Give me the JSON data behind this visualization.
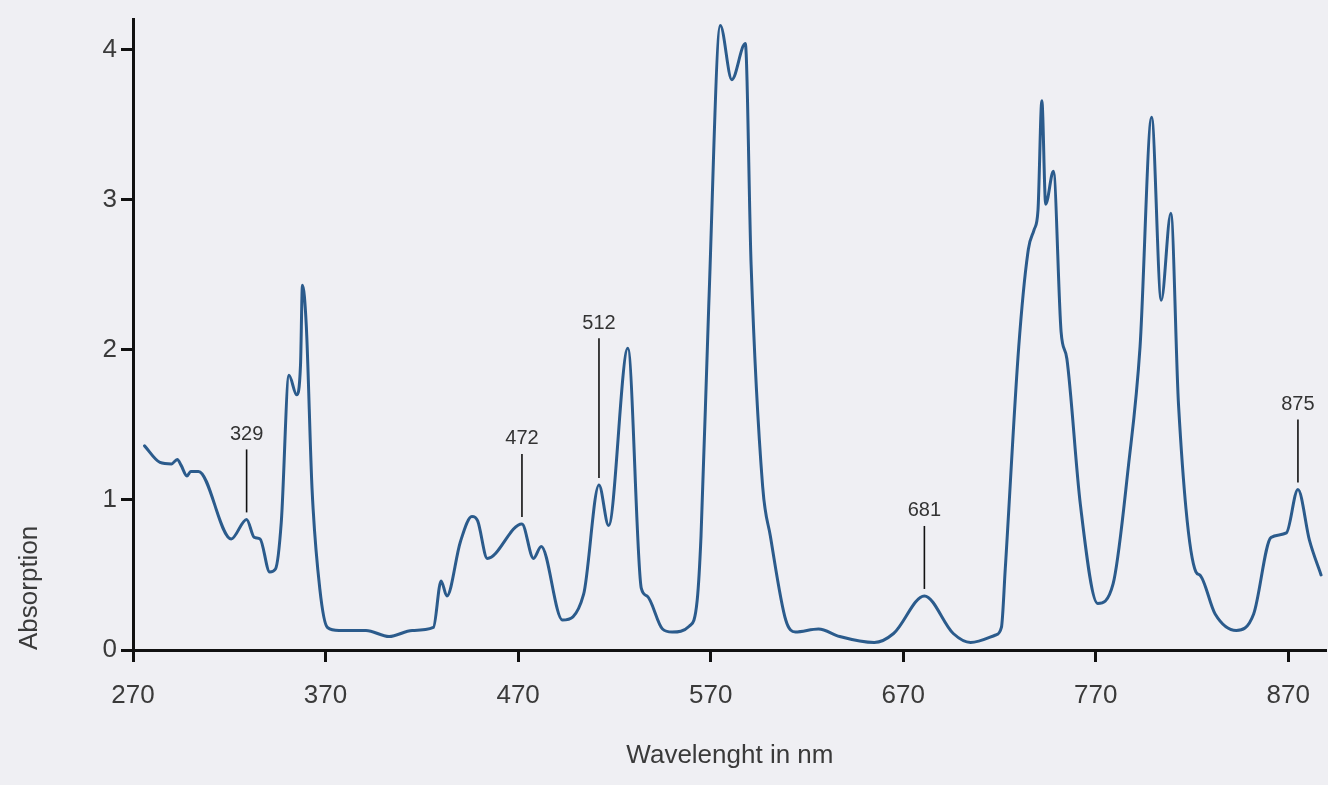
{
  "chart_data": {
    "type": "line",
    "xlabel": "Wavelenght in nm",
    "ylabel": "Absorption",
    "color": "#2b5b8c",
    "marker": "none",
    "xlim": [
      270,
      890
    ],
    "ylim": [
      0,
      4.2
    ],
    "xticks": [
      270,
      370,
      470,
      570,
      670,
      770,
      870
    ],
    "yticks": [
      0,
      1,
      2,
      3,
      4
    ],
    "x": [
      276,
      284,
      290,
      293,
      295,
      298,
      300,
      304,
      321,
      329,
      333,
      336,
      341,
      344,
      347,
      351,
      355,
      357,
      358,
      360,
      363,
      367,
      371,
      377,
      391,
      403,
      415,
      426,
      430,
      433,
      440,
      446,
      449,
      454,
      472,
      478,
      482,
      493,
      504,
      512,
      517,
      527,
      534,
      537,
      545,
      550,
      559,
      563,
      565,
      569,
      575,
      581,
      588,
      591,
      597,
      601,
      609,
      614,
      626,
      637,
      655,
      665,
      681,
      696,
      705,
      718,
      721,
      723,
      730,
      735,
      738,
      740,
      742,
      744,
      748,
      752,
      755,
      762,
      771,
      779,
      787,
      793,
      799,
      804,
      809,
      813,
      822,
      824,
      832,
      843,
      852,
      861,
      869,
      875,
      881,
      887
    ],
    "values": [
      1.36,
      1.25,
      1.24,
      1.27,
      1.23,
      1.16,
      1.19,
      1.19,
      0.74,
      0.87,
      0.75,
      0.74,
      0.52,
      0.54,
      0.85,
      1.83,
      1.7,
      1.9,
      2.43,
      2.16,
      1.07,
      0.41,
      0.15,
      0.13,
      0.13,
      0.09,
      0.13,
      0.15,
      0.46,
      0.36,
      0.72,
      0.89,
      0.86,
      0.61,
      0.84,
      0.61,
      0.69,
      0.2,
      0.37,
      1.1,
      0.83,
      2.01,
      0.41,
      0.36,
      0.14,
      0.12,
      0.16,
      0.33,
      0.76,
      2.29,
      4.16,
      3.8,
      4.04,
      2.57,
      1.09,
      0.76,
      0.2,
      0.12,
      0.14,
      0.09,
      0.05,
      0.11,
      0.36,
      0.11,
      0.05,
      0.1,
      0.15,
      0.54,
      2.02,
      2.67,
      2.8,
      2.93,
      3.66,
      2.97,
      3.19,
      2.12,
      1.94,
      0.97,
      0.31,
      0.44,
      1.23,
      2.02,
      3.55,
      2.33,
      2.91,
      1.63,
      0.52,
      0.5,
      0.24,
      0.13,
      0.24,
      0.75,
      0.78,
      1.07,
      0.73,
      0.5
    ],
    "annotations": [
      {
        "text": "329",
        "x": 329,
        "y": 0.87
      },
      {
        "text": "472",
        "x": 472,
        "y": 0.84
      },
      {
        "text": "512",
        "x": 512,
        "y": 1.1
      },
      {
        "text": "681",
        "x": 681,
        "y": 0.36
      },
      {
        "text": "875",
        "x": 875,
        "y": 1.07
      }
    ]
  }
}
